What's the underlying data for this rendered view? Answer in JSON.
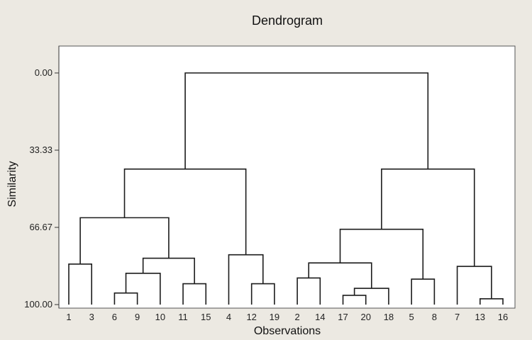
{
  "chart_data": {
    "type": "dendrogram",
    "title": "Dendrogram",
    "xlabel": "Observations",
    "ylabel": "Similarity",
    "ylim": [
      0,
      100
    ],
    "yticks": [
      "0.00",
      "33.33",
      "66.67",
      "100.00"
    ],
    "yticks_values": [
      0,
      33.33,
      66.67,
      100
    ],
    "leaf_order": [
      "1",
      "3",
      "6",
      "9",
      "10",
      "11",
      "15",
      "4",
      "12",
      "19",
      "2",
      "14",
      "17",
      "20",
      "18",
      "5",
      "8",
      "7",
      "13",
      "16"
    ],
    "merges": [
      {
        "left": "6",
        "right": "9",
        "similarity": 95
      },
      {
        "left": "13",
        "right": "16",
        "similarity": 97.5
      },
      {
        "left": "17",
        "right": "20",
        "similarity": 96
      },
      {
        "left": "(17,20)",
        "right": "18",
        "similarity": 93
      },
      {
        "left": "2",
        "right": "14",
        "similarity": 88.5
      },
      {
        "left": "11",
        "right": "15",
        "similarity": 91
      },
      {
        "left": "12",
        "right": "19",
        "similarity": 91
      },
      {
        "left": "5",
        "right": "8",
        "similarity": 89
      },
      {
        "left": "(6,9)",
        "right": "10",
        "similarity": 86.5
      },
      {
        "left": "(2,14)",
        "right": "(17,20,18)",
        "similarity": 82
      },
      {
        "left": "1",
        "right": "3",
        "similarity": 82.5
      },
      {
        "left": "7",
        "right": "(13,16)",
        "similarity": 83.5
      },
      {
        "left": "4",
        "right": "(12,19)",
        "similarity": 78.5
      },
      {
        "left": "(6,9,10)",
        "right": "(11,15)",
        "similarity": 80
      },
      {
        "left": "(2,14,17,20,18)",
        "right": "(5,8)",
        "similarity": 67.5
      },
      {
        "left": "(1,3)",
        "right": "(6,9,10,11,15)",
        "similarity": 62.5
      },
      {
        "left": "(1,3,6,9,10,11,15)",
        "right": "(4,12,19)",
        "similarity": 41.5
      },
      {
        "left": "(2,14,17,20,18,5,8)",
        "right": "(7,13,16)",
        "similarity": 41.5
      },
      {
        "left": "(1,3,6,9,10,11,15,4,12,19)",
        "right": "(2,14,17,20,18,5,8,7,13,16)",
        "similarity": 0
      }
    ],
    "grid": false,
    "legend": "none"
  }
}
